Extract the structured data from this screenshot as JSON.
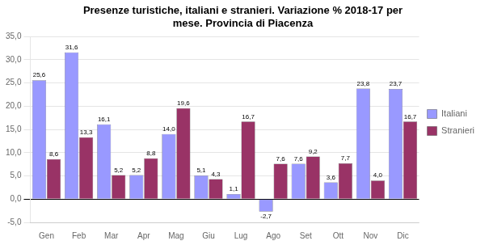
{
  "chart_data": {
    "type": "bar",
    "title": "Presenze turistiche, italiani e stranieri. Variazione % 2018-17 per\nmese. Provincia di Piacenza",
    "categories": [
      "Gen",
      "Feb",
      "Mar",
      "Apr",
      "Mag",
      "Giu",
      "Lug",
      "Ago",
      "Set",
      "Ott",
      "Nov",
      "Dic"
    ],
    "series": [
      {
        "name": "Italiani",
        "color": "#9999FF",
        "values": [
          25.6,
          31.6,
          16.1,
          5.2,
          14.0,
          5.1,
          1.1,
          -2.7,
          7.6,
          3.6,
          23.8,
          23.7
        ],
        "value_labels": [
          "25,6",
          "31,6",
          "16,1",
          "5,2",
          "14,0",
          "5,1",
          "1,1",
          "-2,7",
          "7,6",
          "3,6",
          "23,8",
          "23,7"
        ]
      },
      {
        "name": "Stranieri",
        "color": "#993366",
        "values": [
          8.6,
          13.3,
          5.2,
          8.8,
          19.6,
          4.3,
          16.7,
          7.6,
          9.2,
          7.7,
          4.0,
          16.7
        ],
        "value_labels": [
          "8,6",
          "13,3",
          "5,2",
          "8,8",
          "19,6",
          "4,3",
          "16,7",
          "7,6",
          "9,2",
          "7,7",
          "4,0",
          "16,7"
        ]
      }
    ],
    "ylim": [
      -5,
      35
    ],
    "yticks": [
      {
        "value": -5,
        "label": "-5,0"
      },
      {
        "value": 0,
        "label": "0,0"
      },
      {
        "value": 5,
        "label": "5,0"
      },
      {
        "value": 10,
        "label": "10,0"
      },
      {
        "value": 15,
        "label": "15,0"
      },
      {
        "value": 20,
        "label": "20,0"
      },
      {
        "value": 25,
        "label": "25,0"
      },
      {
        "value": 30,
        "label": "30,0"
      },
      {
        "value": 35,
        "label": "35,0"
      }
    ],
    "grid": true,
    "legend": "right",
    "data_labels": true
  }
}
